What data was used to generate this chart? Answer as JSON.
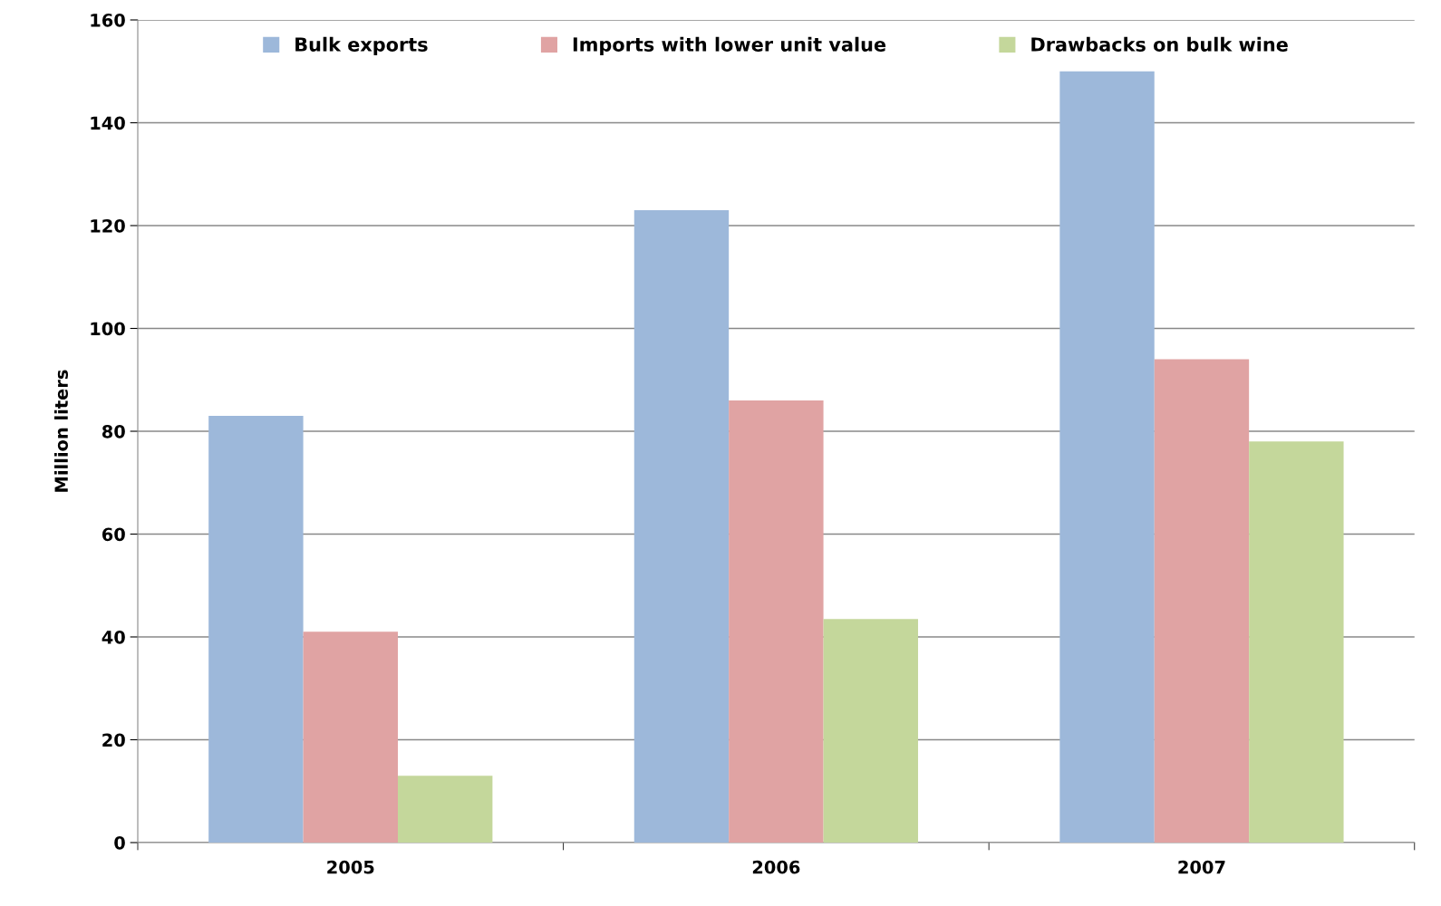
{
  "chart_data": {
    "type": "bar",
    "ylabel": "Million liters",
    "categories": [
      "2005",
      "2006",
      "2007"
    ],
    "series": [
      {
        "name": "Bulk exports",
        "color": "#9db8da",
        "values": [
          83,
          123,
          150
        ]
      },
      {
        "name": "Imports with lower unit value",
        "color": "#e0a3a3",
        "values": [
          41,
          86,
          94
        ]
      },
      {
        "name": "Drawbacks on bulk wine",
        "color": "#c4d79b",
        "values": [
          13,
          43.5,
          78
        ]
      }
    ],
    "ylim": [
      0,
      160
    ],
    "yticks": [
      0,
      20,
      40,
      60,
      80,
      100,
      120,
      140,
      160
    ],
    "grid": "y",
    "legend": "top"
  }
}
